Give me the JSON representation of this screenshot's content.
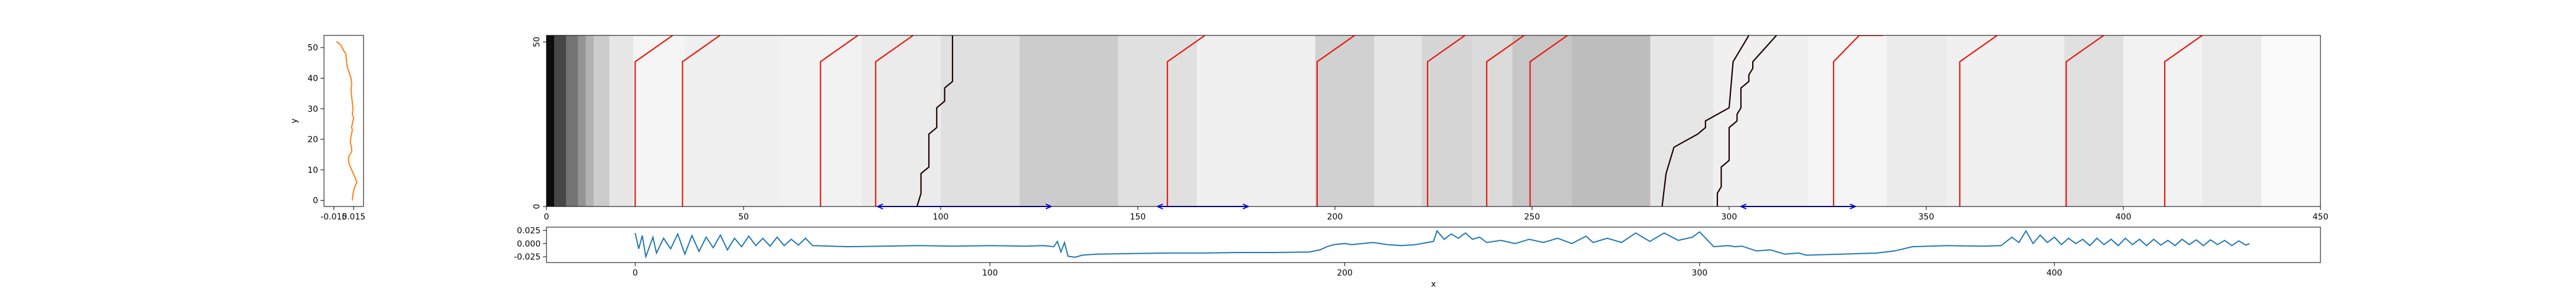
{
  "chart_data": [
    {
      "id": "left-profile",
      "type": "line",
      "ylabel": "y",
      "xlim": [
        -0.03,
        0.03
      ],
      "ylim": [
        -2,
        54
      ],
      "xticks": [
        -0.015,
        0.015
      ],
      "xtick_labels": [
        "-0.015",
        "0.015"
      ],
      "yticks": [
        0,
        10,
        20,
        30,
        40,
        50
      ],
      "series": [
        {
          "color": "#ff7f0e",
          "x": [
            0.013,
            0.014,
            0.016,
            0.02,
            0.016,
            0.012,
            0.008,
            0.007,
            0.012,
            0.012,
            0.01,
            0.011,
            0.013,
            0.012,
            0.014,
            0.015,
            0.013,
            0.014,
            0.013,
            0.012,
            0.011,
            0.012,
            0.011,
            0.008,
            0.005,
            0.004,
            0.003,
            0.0,
            -0.005,
            -0.011
          ],
          "y": [
            0,
            2,
            4,
            6,
            8,
            10,
            12,
            14,
            16,
            17,
            19,
            21,
            23,
            24,
            26,
            27,
            28,
            30,
            32,
            34,
            36,
            38,
            40,
            42,
            44,
            46,
            48,
            49,
            51,
            52
          ]
        }
      ]
    },
    {
      "id": "main-heatmap",
      "type": "heatmap",
      "xlim": [
        0,
        450
      ],
      "ylim": [
        0,
        52
      ],
      "xticks": [
        0,
        50,
        100,
        150,
        200,
        250,
        300,
        350,
        400,
        450
      ],
      "yticks": [
        0,
        50
      ],
      "colormap": "greys",
      "background_columns": [
        {
          "x0": 0,
          "x1": 2,
          "v": 0.95
        },
        {
          "x0": 2,
          "x1": 5,
          "v": 0.72
        },
        {
          "x0": 5,
          "x1": 8,
          "v": 0.55
        },
        {
          "x0": 8,
          "x1": 10,
          "v": 0.42
        },
        {
          "x0": 10,
          "x1": 12,
          "v": 0.3
        },
        {
          "x0": 12,
          "x1": 16,
          "v": 0.2
        },
        {
          "x0": 16,
          "x1": 22,
          "v": 0.1
        },
        {
          "x0": 22,
          "x1": 35,
          "v": 0.04
        },
        {
          "x0": 35,
          "x1": 60,
          "v": 0.06
        },
        {
          "x0": 60,
          "x1": 80,
          "v": 0.05
        },
        {
          "x0": 80,
          "x1": 100,
          "v": 0.08
        },
        {
          "x0": 100,
          "x1": 120,
          "v": 0.12
        },
        {
          "x0": 120,
          "x1": 145,
          "v": 0.2
        },
        {
          "x0": 145,
          "x1": 165,
          "v": 0.12
        },
        {
          "x0": 165,
          "x1": 195,
          "v": 0.06
        },
        {
          "x0": 195,
          "x1": 210,
          "v": 0.18
        },
        {
          "x0": 210,
          "x1": 222,
          "v": 0.1
        },
        {
          "x0": 222,
          "x1": 235,
          "v": 0.16
        },
        {
          "x0": 235,
          "x1": 245,
          "v": 0.14
        },
        {
          "x0": 245,
          "x1": 260,
          "v": 0.22
        },
        {
          "x0": 260,
          "x1": 280,
          "v": 0.26
        },
        {
          "x0": 280,
          "x1": 296,
          "v": 0.1
        },
        {
          "x0": 296,
          "x1": 320,
          "v": 0.06
        },
        {
          "x0": 320,
          "x1": 340,
          "v": 0.04
        },
        {
          "x0": 340,
          "x1": 355,
          "v": 0.08
        },
        {
          "x0": 355,
          "x1": 385,
          "v": 0.06
        },
        {
          "x0": 385,
          "x1": 400,
          "v": 0.12
        },
        {
          "x0": 400,
          "x1": 420,
          "v": 0.05
        },
        {
          "x0": 420,
          "x1": 435,
          "v": 0.08
        },
        {
          "x0": 435,
          "x1": 455,
          "v": 0.02
        }
      ],
      "red_lines": [
        [
          [
            22.5,
            0
          ],
          [
            22.5,
            44
          ],
          [
            32,
            52
          ]
        ],
        [
          [
            34.5,
            0
          ],
          [
            34.5,
            44
          ],
          [
            44,
            52
          ]
        ],
        [
          [
            69.5,
            0
          ],
          [
            69.5,
            44
          ],
          [
            79,
            52
          ]
        ],
        [
          [
            83.5,
            0
          ],
          [
            83.5,
            44
          ],
          [
            93,
            52
          ]
        ],
        [
          [
            157.5,
            0
          ],
          [
            157.5,
            44
          ],
          [
            167,
            52
          ]
        ],
        [
          [
            195.5,
            0
          ],
          [
            195.5,
            44
          ],
          [
            205,
            52
          ]
        ],
        [
          [
            223.5,
            0
          ],
          [
            223.5,
            44
          ],
          [
            233,
            52
          ]
        ],
        [
          [
            238.5,
            0
          ],
          [
            238.5,
            44
          ],
          [
            248,
            52
          ]
        ],
        [
          [
            249.5,
            0
          ],
          [
            249.5,
            44
          ],
          [
            259,
            52
          ]
        ],
        [
          [
            326.5,
            0
          ],
          [
            326.5,
            44
          ],
          [
            333,
            52
          ],
          [
            339,
            52
          ]
        ],
        [
          [
            358.5,
            0
          ],
          [
            358.5,
            44
          ],
          [
            368,
            52
          ]
        ],
        [
          [
            385.5,
            0
          ],
          [
            385.5,
            44
          ],
          [
            395,
            52
          ]
        ],
        [
          [
            410.5,
            0
          ],
          [
            410.5,
            44
          ],
          [
            420,
            52
          ]
        ]
      ],
      "dark_lines": [
        [
          [
            94,
            0
          ],
          [
            95,
            4
          ],
          [
            95,
            10
          ],
          [
            97,
            12
          ],
          [
            97,
            22
          ],
          [
            99,
            24
          ],
          [
            99,
            30
          ],
          [
            101,
            32
          ],
          [
            101,
            36
          ],
          [
            103,
            38
          ],
          [
            103,
            52
          ]
        ],
        [
          [
            283,
            0
          ],
          [
            284,
            10
          ],
          [
            286,
            18
          ],
          [
            292,
            22
          ],
          [
            294,
            24
          ],
          [
            294,
            26
          ],
          [
            300,
            30
          ],
          [
            301,
            44
          ],
          [
            305,
            52
          ]
        ],
        [
          [
            297,
            0
          ],
          [
            297,
            4
          ],
          [
            298,
            6
          ],
          [
            298,
            12
          ],
          [
            300,
            14
          ],
          [
            300,
            24
          ],
          [
            302,
            26
          ],
          [
            302,
            28
          ],
          [
            303,
            30
          ],
          [
            303,
            36
          ],
          [
            305,
            38
          ],
          [
            305,
            40
          ],
          [
            306,
            42
          ],
          [
            306,
            44
          ],
          [
            312,
            52
          ]
        ]
      ],
      "blue_segments": [
        {
          "x0": 84,
          "x1": 128,
          "y": 0
        },
        {
          "x0": 155,
          "x1": 178,
          "y": 0
        },
        {
          "x0": 303,
          "x1": 332,
          "y": 0
        }
      ]
    },
    {
      "id": "bottom-signal",
      "type": "line",
      "xlabel": "x",
      "xlim": [
        -25,
        475
      ],
      "ylim": [
        -0.036,
        0.031
      ],
      "xticks": [
        0,
        100,
        200,
        300,
        400
      ],
      "yticks": [
        0.025,
        0.0,
        -0.025
      ],
      "ytick_labels": [
        "0.025",
        "0.000",
        "-0.025"
      ],
      "series": [
        {
          "color": "#1f77b4",
          "x": [
            0,
            1,
            2,
            3,
            5,
            6,
            8,
            10,
            12,
            14,
            16,
            18,
            20,
            22,
            24,
            26,
            28,
            30,
            32,
            34,
            36,
            38,
            40,
            42,
            44,
            46,
            48,
            50,
            60,
            70,
            80,
            90,
            100,
            110,
            115,
            118,
            119,
            120,
            121,
            122,
            124,
            126,
            130,
            140,
            150,
            160,
            170,
            180,
            190,
            193,
            195,
            197,
            200,
            202,
            205,
            208,
            212,
            216,
            220,
            225,
            226,
            228,
            230,
            232,
            234,
            236,
            238,
            240,
            244,
            248,
            252,
            256,
            260,
            264,
            268,
            270,
            274,
            278,
            282,
            286,
            290,
            294,
            298,
            300,
            304,
            308,
            310,
            312,
            316,
            320,
            324,
            328,
            330,
            335,
            340,
            350,
            355,
            360,
            370,
            380,
            385,
            388,
            390,
            392,
            394,
            396,
            398,
            400,
            402,
            404,
            406,
            408,
            410,
            412,
            414,
            416,
            418,
            420,
            422,
            424,
            426,
            428,
            430,
            432,
            434,
            436,
            438,
            440,
            442,
            444,
            446,
            448,
            450,
            452,
            454,
            455
          ],
          "y": [
            0.02,
            -0.01,
            0.015,
            -0.025,
            0.012,
            -0.018,
            0.01,
            -0.01,
            0.018,
            -0.02,
            0.015,
            -0.015,
            0.012,
            -0.008,
            0.016,
            -0.012,
            0.01,
            -0.006,
            0.014,
            -0.004,
            0.01,
            -0.005,
            0.012,
            -0.004,
            0.008,
            -0.003,
            0.01,
            -0.004,
            -0.006,
            -0.005,
            -0.004,
            -0.005,
            -0.004,
            -0.005,
            -0.004,
            -0.006,
            0.004,
            -0.016,
            0.002,
            -0.024,
            -0.026,
            -0.022,
            -0.02,
            -0.019,
            -0.018,
            -0.018,
            -0.017,
            -0.017,
            -0.016,
            -0.012,
            -0.006,
            -0.002,
            0.0,
            -0.002,
            0.0,
            0.002,
            -0.002,
            -0.004,
            -0.002,
            0.004,
            0.024,
            0.008,
            0.018,
            0.01,
            0.02,
            0.008,
            0.012,
            0.002,
            0.006,
            0.0,
            0.008,
            0.002,
            0.01,
            0.0,
            0.014,
            0.002,
            0.01,
            0.002,
            0.02,
            0.004,
            0.02,
            0.006,
            0.012,
            0.022,
            -0.006,
            -0.004,
            -0.006,
            -0.005,
            -0.014,
            -0.012,
            -0.02,
            -0.018,
            -0.022,
            -0.021,
            -0.02,
            -0.018,
            -0.014,
            -0.006,
            -0.004,
            -0.005,
            -0.004,
            0.012,
            0.002,
            0.024,
            0.0,
            0.016,
            0.002,
            0.012,
            -0.002,
            0.01,
            0.0,
            0.008,
            -0.004,
            0.01,
            -0.002,
            0.008,
            -0.004,
            0.01,
            -0.002,
            0.008,
            -0.004,
            0.008,
            -0.003,
            0.006,
            -0.004,
            0.008,
            -0.002,
            0.007,
            -0.004,
            0.007,
            -0.002,
            0.006,
            -0.004,
            0.005,
            -0.003,
            0.0
          ]
        }
      ]
    }
  ]
}
